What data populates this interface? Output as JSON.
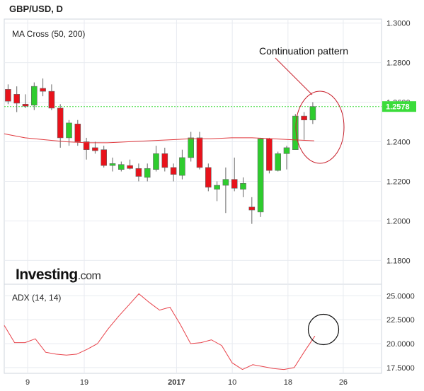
{
  "chart_data": [
    {
      "type": "candlestick",
      "title": "GBP/USD, D",
      "indicator_label": "MA Cross (50, 200)",
      "annotation": "Continuation pattern",
      "brand": "Investing",
      "brand_suffix": ".com",
      "price_label": "1.2578",
      "last_price": 1.2578,
      "ylim": [
        1.168,
        1.302
      ],
      "yticks": [
        "1.3000",
        "1.2800",
        "1.2600",
        "1.2400",
        "1.2200",
        "1.2000",
        "1.1800"
      ],
      "ytick_values": [
        1.3,
        1.28,
        1.26,
        1.24,
        1.22,
        1.2,
        1.18
      ],
      "x_count": 38,
      "xticks": [
        "9",
        "19",
        "2017",
        "10",
        "18",
        "26"
      ],
      "xtick_index": [
        2.25,
        8.75,
        19.35,
        25.75,
        32.15,
        38.5
      ],
      "colors": {
        "up": "#2ecc2e",
        "down": "#e8121b",
        "ma": "#e0393e",
        "last_price": "#3bdc3b"
      },
      "candles": [
        {
          "o": 1.2665,
          "h": 1.269,
          "l": 1.259,
          "c": 1.2605
        },
        {
          "o": 1.264,
          "h": 1.268,
          "l": 1.255,
          "c": 1.2595
        },
        {
          "o": 1.259,
          "h": 1.264,
          "l": 1.257,
          "c": 1.258
        },
        {
          "o": 1.2585,
          "h": 1.27,
          "l": 1.256,
          "c": 1.268
        },
        {
          "o": 1.267,
          "h": 1.272,
          "l": 1.263,
          "c": 1.2655
        },
        {
          "o": 1.2655,
          "h": 1.269,
          "l": 1.256,
          "c": 1.257
        },
        {
          "o": 1.257,
          "h": 1.259,
          "l": 1.237,
          "c": 1.242
        },
        {
          "o": 1.242,
          "h": 1.251,
          "l": 1.238,
          "c": 1.2495
        },
        {
          "o": 1.249,
          "h": 1.251,
          "l": 1.238,
          "c": 1.24
        },
        {
          "o": 1.24,
          "h": 1.242,
          "l": 1.231,
          "c": 1.236
        },
        {
          "o": 1.237,
          "h": 1.24,
          "l": 1.234,
          "c": 1.2355
        },
        {
          "o": 1.236,
          "h": 1.238,
          "l": 1.227,
          "c": 1.228
        },
        {
          "o": 1.228,
          "h": 1.232,
          "l": 1.225,
          "c": 1.229
        },
        {
          "o": 1.226,
          "h": 1.23,
          "l": 1.225,
          "c": 1.2285
        },
        {
          "o": 1.228,
          "h": 1.231,
          "l": 1.226,
          "c": 1.2265
        },
        {
          "o": 1.2265,
          "h": 1.229,
          "l": 1.22,
          "c": 1.2225
        },
        {
          "o": 1.222,
          "h": 1.229,
          "l": 1.22,
          "c": 1.2265
        },
        {
          "o": 1.226,
          "h": 1.238,
          "l": 1.225,
          "c": 1.234
        },
        {
          "o": 1.234,
          "h": 1.237,
          "l": 1.225,
          "c": 1.227
        },
        {
          "o": 1.227,
          "h": 1.229,
          "l": 1.22,
          "c": 1.2235
        },
        {
          "o": 1.223,
          "h": 1.236,
          "l": 1.221,
          "c": 1.232
        },
        {
          "o": 1.232,
          "h": 1.245,
          "l": 1.23,
          "c": 1.242
        },
        {
          "o": 1.242,
          "h": 1.245,
          "l": 1.226,
          "c": 1.227
        },
        {
          "o": 1.227,
          "h": 1.229,
          "l": 1.215,
          "c": 1.217
        },
        {
          "o": 1.216,
          "h": 1.22,
          "l": 1.21,
          "c": 1.218
        },
        {
          "o": 1.218,
          "h": 1.227,
          "l": 1.204,
          "c": 1.221
        },
        {
          "o": 1.221,
          "h": 1.232,
          "l": 1.215,
          "c": 1.2165
        },
        {
          "o": 1.216,
          "h": 1.222,
          "l": 1.212,
          "c": 1.219
        },
        {
          "o": 1.207,
          "h": 1.212,
          "l": 1.1985,
          "c": 1.2055
        },
        {
          "o": 1.2045,
          "h": 1.242,
          "l": 1.202,
          "c": 1.2415
        },
        {
          "o": 1.2415,
          "h": 1.242,
          "l": 1.224,
          "c": 1.2255
        },
        {
          "o": 1.2255,
          "h": 1.235,
          "l": 1.225,
          "c": 1.234
        },
        {
          "o": 1.234,
          "h": 1.238,
          "l": 1.226,
          "c": 1.237
        },
        {
          "o": 1.236,
          "h": 1.254,
          "l": 1.236,
          "c": 1.253
        },
        {
          "o": 1.253,
          "h": 1.255,
          "l": 1.241,
          "c": 1.251
        },
        {
          "o": 1.251,
          "h": 1.26,
          "l": 1.249,
          "c": 1.2578
        }
      ],
      "ma_values": [
        1.244,
        1.242,
        1.241,
        1.24,
        1.2395,
        1.2395,
        1.24,
        1.2405,
        1.241,
        1.2415,
        1.2415,
        1.242,
        1.242,
        1.2415,
        1.241,
        1.2405
      ]
    },
    {
      "type": "line",
      "indicator_label": "ADX (14, 14)",
      "ylim": [
        16.9,
        26.2
      ],
      "yticks": [
        "25.0000",
        "22.5000",
        "20.0000",
        "17.5000"
      ],
      "ytick_values": [
        25.0,
        22.5,
        20.0,
        17.5
      ],
      "values": [
        21.9,
        20.1,
        20.1,
        20.5,
        19.1,
        18.9,
        18.8,
        18.9,
        19.4,
        20.0,
        21.5,
        22.8,
        24.0,
        25.2,
        24.3,
        23.5,
        23.8,
        22.0,
        20.0,
        20.1,
        20.4,
        19.8,
        18.0,
        17.3,
        17.8,
        17.6,
        17.4,
        17.3,
        17.5,
        19.2,
        20.8
      ]
    }
  ]
}
